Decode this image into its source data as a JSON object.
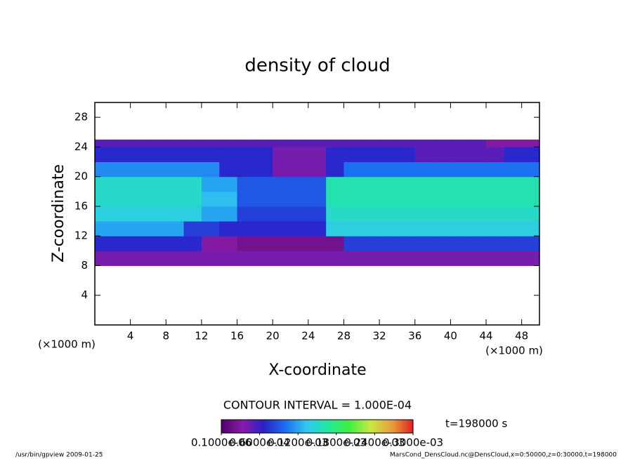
{
  "chart_data": {
    "type": "heatmap",
    "title": "density of cloud",
    "xlabel": "X-coordinate",
    "ylabel": "Z-coordinate",
    "x_unit": "(×1000 m)",
    "annotation": "CONTOUR INTERVAL = 1.000E-04",
    "time_label": "t=198000 s",
    "footer_left": "/usr/bin/gpview  2009-01-25",
    "footer_right": "MarsCond_DensCloud.nc@DensCloud,x=0:50000,z=0:30000,t=198000",
    "xlim": [
      0,
      50
    ],
    "ylim": [
      0,
      30
    ],
    "xticks": [
      4,
      8,
      12,
      16,
      20,
      24,
      28,
      32,
      36,
      40,
      44,
      48
    ],
    "yticks": [
      4,
      8,
      12,
      16,
      20,
      24,
      28
    ],
    "xbins": [
      0,
      2,
      4,
      6,
      8,
      10,
      12,
      14,
      16,
      18,
      20,
      22,
      24,
      26,
      28,
      30,
      32,
      34,
      36,
      38,
      40,
      42,
      44,
      46,
      48,
      50
    ],
    "zbins": [
      8,
      10,
      12,
      14,
      16,
      18,
      20,
      22,
      24,
      25
    ],
    "values": [
      [
        4e-05,
        4e-05,
        4e-05,
        4e-05,
        4e-05,
        4e-05,
        4e-05,
        4e-05,
        4e-05,
        4e-05,
        4e-05,
        4e-05,
        4e-05,
        4e-05,
        4e-05,
        4e-05,
        4e-05,
        4e-05,
        4e-05,
        4e-05,
        4e-05,
        4e-05,
        4e-05,
        4e-05,
        4e-05
      ],
      [
        7e-05,
        7e-05,
        7e-05,
        7e-05,
        7e-05,
        7e-05,
        3e-05,
        3e-05,
        2e-05,
        2e-05,
        2e-05,
        2e-05,
        2e-05,
        2e-05,
        8e-05,
        8e-05,
        8e-05,
        8e-05,
        8e-05,
        8e-05,
        8e-05,
        8e-05,
        8e-05,
        8e-05,
        8e-05
      ],
      [
        0.00012,
        0.00012,
        0.00012,
        0.00012,
        0.00012,
        8e-05,
        8e-05,
        7e-05,
        7e-05,
        7e-05,
        7e-05,
        7e-05,
        7e-05,
        0.00014,
        0.00014,
        0.00014,
        0.00014,
        0.00014,
        0.00014,
        0.00014,
        0.00014,
        0.00014,
        0.00014,
        0.00014,
        0.00014
      ],
      [
        0.00014,
        0.00014,
        0.00014,
        0.00014,
        0.00014,
        0.00014,
        0.00012,
        0.00012,
        8e-05,
        8e-05,
        8e-05,
        8e-05,
        8e-05,
        0.00015,
        0.00015,
        0.00015,
        0.00015,
        0.00015,
        0.00015,
        0.00015,
        0.00015,
        0.00015,
        0.00015,
        0.00015,
        0.00015
      ],
      [
        0.00015,
        0.00015,
        0.00015,
        0.00015,
        0.00015,
        0.00015,
        0.00013,
        0.00013,
        9e-05,
        9e-05,
        9e-05,
        9e-05,
        9e-05,
        0.00016,
        0.00016,
        0.00016,
        0.00016,
        0.00016,
        0.00016,
        0.00016,
        0.00016,
        0.00016,
        0.00016,
        0.00016,
        0.00016
      ],
      [
        0.00015,
        0.00015,
        0.00015,
        0.00015,
        0.00015,
        0.00015,
        0.00012,
        0.00012,
        9e-05,
        9e-05,
        9e-05,
        9e-05,
        9e-05,
        0.00016,
        0.00016,
        0.00016,
        0.00016,
        0.00016,
        0.00016,
        0.00016,
        0.00016,
        0.00016,
        0.00016,
        0.00016,
        0.00016
      ],
      [
        0.00011,
        0.00011,
        0.00011,
        0.00011,
        0.00011,
        0.00011,
        0.00011,
        7e-05,
        7e-05,
        7e-05,
        4e-05,
        4e-05,
        4e-05,
        7e-05,
        0.0001,
        0.0001,
        0.0001,
        0.0001,
        0.0001,
        0.0001,
        0.0001,
        0.0001,
        0.0001,
        0.0001,
        0.0001
      ],
      [
        7e-05,
        7e-05,
        7e-05,
        7e-05,
        7e-05,
        7e-05,
        7e-05,
        7e-05,
        7e-05,
        7e-05,
        4e-05,
        4e-05,
        4e-05,
        7e-05,
        7e-05,
        7e-05,
        7e-05,
        7e-05,
        5e-05,
        5e-05,
        5e-05,
        5e-05,
        5e-05,
        7e-05,
        7e-05
      ],
      [
        5e-05,
        5e-05,
        5e-05,
        5e-05,
        5e-05,
        5e-05,
        5e-05,
        5e-05,
        5e-05,
        5e-05,
        5e-05,
        5e-05,
        5e-05,
        5e-05,
        5e-05,
        5e-05,
        5e-05,
        5e-05,
        5e-05,
        5e-05,
        5e-05,
        5e-05,
        3e-05,
        3e-05,
        3e-05
      ]
    ],
    "clim": [
      0,
      0.0003
    ],
    "colors": [
      "#50006a",
      "#8a1ca8",
      "#2a20c8",
      "#1a70f0",
      "#30c8f0",
      "#20e8a0",
      "#40f040",
      "#c8e840",
      "#e8a040",
      "#e02020"
    ],
    "colorbar_ticks": [
      {
        "value": 1e-07,
        "label": "0.1000e-06"
      },
      {
        "value": 6e-05,
        "label": "0.6000e-04"
      },
      {
        "value": 0.00012,
        "label": "0.1200e-03"
      },
      {
        "value": 0.00018,
        "label": "0.1800e-03"
      },
      {
        "value": 0.00024,
        "label": "0.2400e-03"
      },
      {
        "value": 0.0003,
        "label": "0.3000e-03"
      }
    ]
  }
}
